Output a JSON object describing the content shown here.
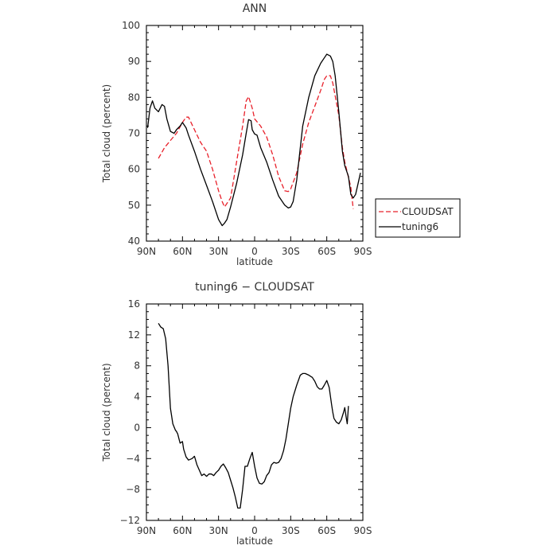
{
  "chart_data": [
    {
      "type": "line",
      "title": "ANN",
      "xlabel": "latitude",
      "ylabel": "Total cloud (percent)",
      "xticklabels": [
        "90N",
        "60N",
        "30N",
        "0",
        "30S",
        "60S",
        "90S"
      ],
      "xlim": [
        90,
        -90
      ],
      "ylim": [
        40,
        100
      ],
      "yticks": [
        40,
        50,
        60,
        70,
        80,
        90,
        100
      ],
      "legend": "right",
      "series": [
        {
          "name": "CLOUDSAT",
          "color": "#e8202a",
          "dash": true,
          "x": [
            80,
            75,
            70,
            65,
            60,
            57,
            55,
            50,
            45,
            40,
            35,
            30,
            27,
            25,
            20,
            15,
            10,
            7,
            5,
            2,
            0,
            -5,
            -10,
            -15,
            -20,
            -25,
            -28,
            -30,
            -35,
            -40,
            -45,
            -50,
            -55,
            -58,
            -60,
            -63,
            -65,
            -70,
            -73,
            -75,
            -80,
            -82
          ],
          "y": [
            63,
            66,
            68,
            70,
            73,
            74.5,
            74.5,
            71,
            67.5,
            65,
            60,
            54,
            51,
            49.5,
            52,
            62,
            72,
            79,
            80.2,
            77,
            74,
            72,
            69,
            64,
            58,
            54,
            53.8,
            54.5,
            59,
            67,
            73,
            77.5,
            82,
            85,
            86,
            86,
            84,
            75,
            66,
            62,
            55,
            49
          ]
        },
        {
          "name": "tuning6",
          "color": "#000000",
          "dash": false,
          "x": [
            89,
            87,
            85,
            83,
            80,
            77,
            75,
            73,
            70,
            67,
            65,
            62,
            60,
            57,
            55,
            50,
            45,
            40,
            35,
            30,
            27,
            25,
            23,
            20,
            15,
            10,
            7,
            5,
            3,
            2,
            0,
            -2,
            -5,
            -10,
            -15,
            -20,
            -25,
            -28,
            -30,
            -32,
            -35,
            -40,
            -45,
            -50,
            -55,
            -58,
            -60,
            -63,
            -65,
            -67,
            -70,
            -73,
            -75,
            -78,
            -80,
            -82,
            -84,
            -86,
            -88
          ],
          "y": [
            71.5,
            77,
            79,
            77,
            76,
            78,
            77.5,
            74,
            70.5,
            70,
            71,
            72,
            73,
            71.5,
            69.5,
            65,
            60,
            55.5,
            51,
            46,
            44.3,
            45,
            46,
            49.5,
            56,
            64,
            70,
            73.8,
            73.5,
            71,
            69.8,
            69.5,
            66,
            62,
            57,
            52.5,
            50,
            49.2,
            49.5,
            51,
            57,
            72,
            80,
            86,
            89.5,
            91,
            92,
            91.5,
            90,
            86,
            76,
            65,
            61,
            58,
            53,
            52,
            53,
            56,
            59
          ]
        }
      ]
    },
    {
      "type": "line",
      "title": "tuning6 − CLOUDSAT",
      "xlabel": "latitude",
      "ylabel": "Total cloud (percent)",
      "xticklabels": [
        "90N",
        "60N",
        "30N",
        "0",
        "30S",
        "60S",
        "90S"
      ],
      "xlim": [
        90,
        -90
      ],
      "ylim": [
        -12,
        16
      ],
      "yticks": [
        -12,
        -8,
        -4,
        0,
        4,
        8,
        12,
        16
      ],
      "series": [
        {
          "color": "#000000",
          "dash": false,
          "x": [
            80,
            78,
            76,
            74,
            72,
            70,
            68,
            66,
            65,
            64,
            62,
            60,
            59,
            57,
            55,
            52,
            50,
            48,
            46,
            44,
            42,
            40,
            38,
            36,
            34,
            32,
            30,
            28,
            26,
            24,
            22,
            20,
            18,
            16,
            14,
            12,
            10,
            8,
            6,
            4,
            2,
            0,
            -2,
            -4,
            -6,
            -8,
            -10,
            -12,
            -14,
            -16,
            -18,
            -20,
            -22,
            -24,
            -26,
            -28,
            -30,
            -32,
            -35,
            -38,
            -40,
            -42,
            -45,
            -48,
            -50,
            -52,
            -54,
            -56,
            -58,
            -60,
            -62,
            -64,
            -65,
            -66,
            -68,
            -70,
            -72,
            -74,
            -75,
            -76,
            -77,
            -78
          ],
          "y": [
            13.5,
            13,
            12.8,
            11.5,
            8,
            2.5,
            0.5,
            -0.3,
            -0.5,
            -0.8,
            -2,
            -1.8,
            -2.8,
            -3.8,
            -4.2,
            -4,
            -3.7,
            -4.8,
            -5.5,
            -6.2,
            -6,
            -6.3,
            -6,
            -6,
            -6.2,
            -5.8,
            -5.5,
            -5,
            -4.7,
            -5.2,
            -5.8,
            -6.8,
            -7.8,
            -9,
            -10.4,
            -10.4,
            -8,
            -5,
            -5,
            -4,
            -3.2,
            -5,
            -6.5,
            -7.2,
            -7.3,
            -7,
            -6.2,
            -5.8,
            -4.8,
            -4.5,
            -4.6,
            -4.5,
            -4,
            -3,
            -1.5,
            0.5,
            2.5,
            4,
            5.5,
            6.8,
            7,
            7,
            6.8,
            6.5,
            6,
            5.3,
            5,
            5,
            5.5,
            6.1,
            5.2,
            3,
            2,
            1.2,
            0.7,
            0.5,
            1,
            2,
            2.6,
            1.5,
            0.5,
            2.8
          ]
        }
      ]
    }
  ]
}
